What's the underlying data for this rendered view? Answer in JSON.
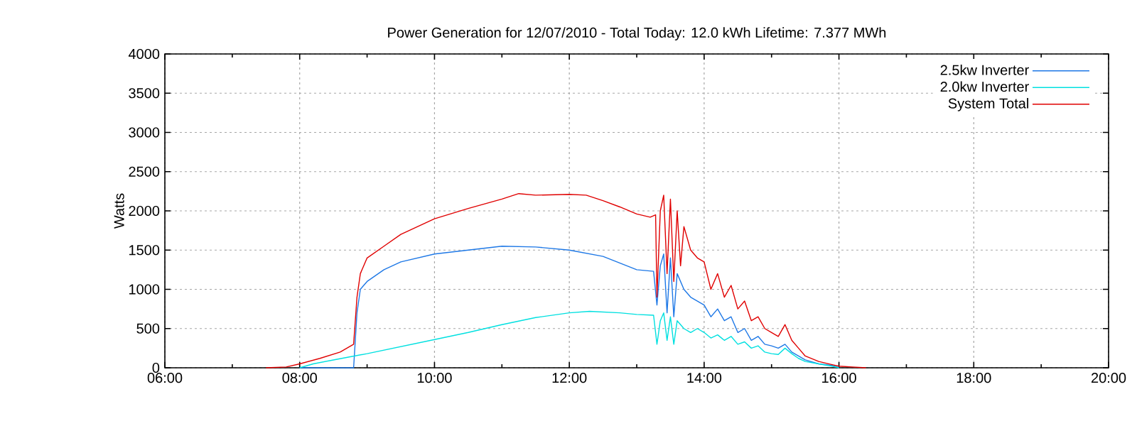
{
  "chart_data": {
    "type": "line",
    "title": "Power Generation for 12/07/2010 - Total Today: 12.0 kWh   Lifetime: 7.377 MWh",
    "ylabel": "Watts",
    "xlim": [
      6,
      20
    ],
    "ylim": [
      0,
      4000
    ],
    "xticks": [
      {
        "value": 6,
        "label": "06:00"
      },
      {
        "value": 8,
        "label": "08:00"
      },
      {
        "value": 10,
        "label": "10:00"
      },
      {
        "value": 12,
        "label": "12:00"
      },
      {
        "value": 14,
        "label": "14:00"
      },
      {
        "value": 16,
        "label": "16:00"
      },
      {
        "value": 18,
        "label": "18:00"
      },
      {
        "value": 20,
        "label": "20:00"
      }
    ],
    "yticks": [
      0,
      500,
      1000,
      1500,
      2000,
      2500,
      3000,
      3500,
      4000
    ],
    "grid": true,
    "legend": "top right",
    "marker": "none",
    "line_style": "solid",
    "series": [
      {
        "name": "2.5kw Inverter",
        "color": "#1e78e6",
        "x": [
          8.0,
          8.8,
          8.85,
          8.9,
          9.0,
          9.25,
          9.5,
          10.0,
          10.5,
          11.0,
          11.5,
          12.0,
          12.5,
          13.0,
          13.25,
          13.3,
          13.35,
          13.4,
          13.45,
          13.5,
          13.55,
          13.6,
          13.7,
          13.8,
          13.9,
          14.0,
          14.1,
          14.2,
          14.3,
          14.4,
          14.5,
          14.6,
          14.7,
          14.8,
          14.9,
          15.0,
          15.1,
          15.2,
          15.3,
          15.4,
          15.5,
          15.7,
          15.9,
          16.0
        ],
        "values": [
          0,
          0,
          700,
          1000,
          1100,
          1250,
          1350,
          1450,
          1500,
          1550,
          1540,
          1500,
          1420,
          1250,
          1230,
          800,
          1300,
          1450,
          700,
          1400,
          650,
          1200,
          1000,
          900,
          850,
          800,
          650,
          750,
          600,
          650,
          450,
          500,
          350,
          400,
          300,
          280,
          250,
          300,
          200,
          150,
          100,
          50,
          30,
          0
        ]
      },
      {
        "name": "2.0kw Inverter",
        "color": "#00e0e0",
        "x": [
          8.0,
          8.2,
          8.5,
          9.0,
          9.5,
          10.0,
          10.5,
          11.0,
          11.5,
          12.0,
          12.3,
          12.75,
          13.0,
          13.25,
          13.3,
          13.35,
          13.4,
          13.45,
          13.5,
          13.55,
          13.6,
          13.7,
          13.8,
          13.9,
          14.0,
          14.1,
          14.2,
          14.3,
          14.4,
          14.5,
          14.6,
          14.7,
          14.8,
          14.9,
          15.0,
          15.1,
          15.2,
          15.3,
          15.4,
          15.5,
          15.7,
          15.9,
          16.0
        ],
        "values": [
          0,
          50,
          100,
          180,
          270,
          360,
          450,
          550,
          640,
          700,
          720,
          700,
          680,
          670,
          300,
          600,
          700,
          350,
          650,
          300,
          600,
          500,
          450,
          500,
          450,
          380,
          420,
          350,
          400,
          300,
          330,
          250,
          280,
          200,
          180,
          170,
          250,
          180,
          120,
          80,
          50,
          20,
          0
        ]
      },
      {
        "name": "System Total",
        "color": "#e00000",
        "x": [
          7.5,
          7.8,
          8.0,
          8.3,
          8.6,
          8.8,
          8.85,
          8.9,
          9.0,
          9.25,
          9.5,
          10.0,
          10.5,
          11.0,
          11.25,
          11.5,
          12.0,
          12.25,
          12.5,
          12.75,
          13.0,
          13.2,
          13.28,
          13.3,
          13.35,
          13.4,
          13.45,
          13.5,
          13.55,
          13.6,
          13.65,
          13.7,
          13.8,
          13.9,
          14.0,
          14.1,
          14.2,
          14.3,
          14.4,
          14.5,
          14.6,
          14.7,
          14.8,
          14.9,
          15.0,
          15.1,
          15.2,
          15.3,
          15.4,
          15.5,
          15.7,
          15.9,
          16.0,
          16.2,
          16.4
        ],
        "values": [
          0,
          10,
          50,
          120,
          200,
          300,
          900,
          1200,
          1400,
          1550,
          1700,
          1900,
          2030,
          2150,
          2220,
          2200,
          2210,
          2200,
          2130,
          2050,
          1960,
          1920,
          1950,
          900,
          2000,
          2200,
          1200,
          2150,
          1100,
          2000,
          1300,
          1800,
          1500,
          1400,
          1350,
          1000,
          1200,
          900,
          1050,
          750,
          850,
          600,
          650,
          500,
          450,
          400,
          550,
          350,
          250,
          150,
          80,
          40,
          20,
          10,
          0
        ]
      }
    ]
  }
}
